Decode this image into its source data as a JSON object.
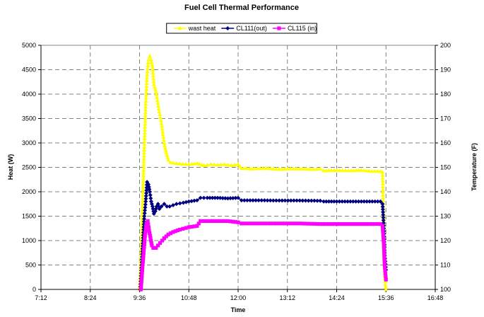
{
  "chart_data": {
    "type": "line",
    "title": "Fuel Cell Thermal Performance",
    "xlabel": "Time",
    "ylabel": "Heat (W)",
    "y2label": "Temperature (F)",
    "x_ticks": [
      "7:12",
      "8:24",
      "9:36",
      "10:48",
      "12:00",
      "13:12",
      "14:24",
      "15:36",
      "16:48"
    ],
    "y_ticks": [
      "0",
      "500",
      "1000",
      "1500",
      "2000",
      "2500",
      "3000",
      "3500",
      "4000",
      "4500",
      "5000"
    ],
    "y2_ticks": [
      "100",
      "110",
      "120",
      "130",
      "140",
      "150",
      "160",
      "170",
      "180",
      "190",
      "200"
    ],
    "xlim_minutes_of_day": [
      432,
      1008
    ],
    "ylim": [
      0,
      5000
    ],
    "y2lim": [
      100,
      200
    ],
    "grid": true,
    "legend_position": "top-center",
    "series": [
      {
        "name": "wast heat",
        "axis": "left",
        "color": "#FFFF00",
        "marker": "triangle",
        "points": [
          [
            "9:36",
            0
          ],
          [
            "9:39",
            1000
          ],
          [
            "9:42",
            2500
          ],
          [
            "9:45",
            3800
          ],
          [
            "9:47",
            4400
          ],
          [
            "9:49",
            4700
          ],
          [
            "9:51",
            4780
          ],
          [
            "9:53",
            4700
          ],
          [
            "9:55",
            4550
          ],
          [
            "9:57",
            4200
          ],
          [
            "10:00",
            4050
          ],
          [
            "10:04",
            3700
          ],
          [
            "10:08",
            3400
          ],
          [
            "10:12",
            3000
          ],
          [
            "10:15",
            2800
          ],
          [
            "10:18",
            2650
          ],
          [
            "10:21",
            2600
          ],
          [
            "10:30",
            2580
          ],
          [
            "10:48",
            2560
          ],
          [
            "11:00",
            2580
          ],
          [
            "11:10",
            2540
          ],
          [
            "11:20",
            2560
          ],
          [
            "11:30",
            2550
          ],
          [
            "11:40",
            2560
          ],
          [
            "11:50",
            2540
          ],
          [
            "12:00",
            2560
          ],
          [
            "12:05",
            2480
          ],
          [
            "12:20",
            2470
          ],
          [
            "12:40",
            2480
          ],
          [
            "13:00",
            2460
          ],
          [
            "13:12",
            2470
          ],
          [
            "13:30",
            2470
          ],
          [
            "13:50",
            2460
          ],
          [
            "14:00",
            2470
          ],
          [
            "14:05",
            2430
          ],
          [
            "14:24",
            2440
          ],
          [
            "14:45",
            2430
          ],
          [
            "15:00",
            2440
          ],
          [
            "15:15",
            2420
          ],
          [
            "15:28",
            2420
          ],
          [
            "15:31",
            2400
          ],
          [
            "15:32",
            1700
          ],
          [
            "15:33",
            700
          ],
          [
            "15:35",
            100
          ],
          [
            "15:36",
            0
          ]
        ]
      },
      {
        "name": "CL111(out)",
        "axis": "right",
        "color": "#000080",
        "marker": "diamond",
        "points": [
          [
            "9:37",
            100
          ],
          [
            "9:39",
            110
          ],
          [
            "9:41",
            120
          ],
          [
            "9:43",
            130
          ],
          [
            "9:45",
            136
          ],
          [
            "9:47",
            144
          ],
          [
            "9:49",
            143
          ],
          [
            "9:51",
            140
          ],
          [
            "9:53",
            136
          ],
          [
            "9:55",
            134
          ],
          [
            "9:57",
            131
          ],
          [
            "9:59",
            132
          ],
          [
            "10:01",
            134
          ],
          [
            "10:03",
            135
          ],
          [
            "10:05",
            133
          ],
          [
            "10:08",
            134
          ],
          [
            "10:12",
            135
          ],
          [
            "10:16",
            134
          ],
          [
            "10:20",
            134
          ],
          [
            "10:25",
            134.5
          ],
          [
            "10:30",
            135
          ],
          [
            "10:40",
            135.5
          ],
          [
            "10:48",
            136
          ],
          [
            "11:00",
            136.5
          ],
          [
            "11:05",
            137.5
          ],
          [
            "11:15",
            137.5
          ],
          [
            "11:30",
            137.5
          ],
          [
            "11:45",
            137.3
          ],
          [
            "12:00",
            137.5
          ],
          [
            "12:05",
            136.5
          ],
          [
            "12:30",
            136.5
          ],
          [
            "13:00",
            136.4
          ],
          [
            "13:30",
            136.4
          ],
          [
            "14:00",
            136.3
          ],
          [
            "14:05",
            136
          ],
          [
            "14:24",
            136
          ],
          [
            "15:00",
            136
          ],
          [
            "15:28",
            136
          ],
          [
            "15:31",
            135
          ],
          [
            "15:33",
            125
          ],
          [
            "15:34",
            115
          ],
          [
            "15:36",
            108
          ]
        ]
      },
      {
        "name": "CL115 (in)",
        "axis": "right",
        "color": "#FF00FF",
        "marker": "square",
        "points": [
          [
            "9:38",
            100
          ],
          [
            "9:40",
            108
          ],
          [
            "9:42",
            115
          ],
          [
            "9:44",
            122
          ],
          [
            "9:46",
            127
          ],
          [
            "9:48",
            128
          ],
          [
            "9:50",
            124
          ],
          [
            "9:52",
            121
          ],
          [
            "9:54",
            118
          ],
          [
            "9:56",
            117
          ],
          [
            "9:58",
            117
          ],
          [
            "10:00",
            117
          ],
          [
            "10:03",
            118
          ],
          [
            "10:06",
            119
          ],
          [
            "10:09",
            120
          ],
          [
            "10:12",
            121
          ],
          [
            "10:18",
            122.5
          ],
          [
            "10:25",
            123.5
          ],
          [
            "10:35",
            124.5
          ],
          [
            "10:48",
            125.5
          ],
          [
            "11:00",
            126
          ],
          [
            "11:05",
            128
          ],
          [
            "11:15",
            128
          ],
          [
            "11:30",
            128
          ],
          [
            "11:45",
            128
          ],
          [
            "12:00",
            127.5
          ],
          [
            "12:05",
            127
          ],
          [
            "12:30",
            127
          ],
          [
            "13:00",
            127
          ],
          [
            "13:30",
            127
          ],
          [
            "14:00",
            126.8
          ],
          [
            "14:24",
            126.8
          ],
          [
            "15:00",
            126.8
          ],
          [
            "15:28",
            126.8
          ],
          [
            "15:31",
            126
          ],
          [
            "15:33",
            118
          ],
          [
            "15:34",
            110
          ],
          [
            "15:36",
            104
          ]
        ]
      }
    ]
  }
}
